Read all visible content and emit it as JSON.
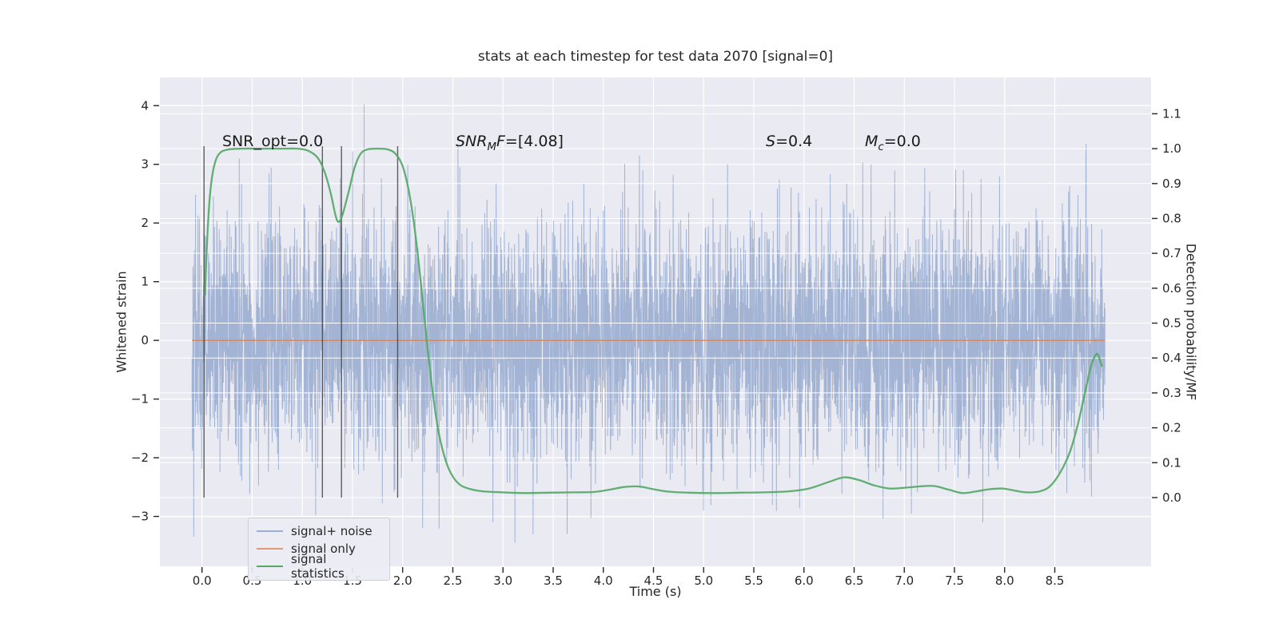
{
  "chart_data": {
    "type": "line",
    "title": "stats at each timestep for test data 2070 [signal=0]",
    "xlabel": "Time (s)",
    "ylabel_left": "Whitened strain",
    "ylabel_right": "Detection probability/MF",
    "plot_background": "#eaeaf2",
    "grid_color": "#ffffff",
    "tick_color": "#262626",
    "xlim": [
      -0.42,
      9.46
    ],
    "ylim_left": [
      -3.85,
      4.48
    ],
    "ylim_right": [
      -0.197,
      1.204
    ],
    "x_tick_values": [
      0,
      0.5,
      1,
      1.5,
      2,
      2.5,
      3,
      3.5,
      4,
      4.5,
      5,
      5.5,
      6,
      6.5,
      7,
      7.5,
      8,
      8.5
    ],
    "x_tick_labels": [
      "0.0",
      "0.5",
      "1.0",
      "1.5",
      "2.0",
      "2.5",
      "3.0",
      "3.5",
      "4.0",
      "4.5",
      "5.0",
      "5.5",
      "6.0",
      "6.5",
      "7.0",
      "7.5",
      "8.0",
      "8.5"
    ],
    "y_left_tick_values": [
      4,
      3,
      2,
      1,
      0,
      -1,
      -2,
      -3
    ],
    "y_left_tick_labels": [
      "4",
      "3",
      "2",
      "1",
      "0",
      "−1",
      "−2",
      "−3"
    ],
    "y_right_tick_values": [
      1.1,
      1.0,
      0.9,
      0.8,
      0.7,
      0.6,
      0.5,
      0.4,
      0.3,
      0.2,
      0.1,
      0.0
    ],
    "y_right_tick_labels": [
      "1.1",
      "1.0",
      "0.9",
      "0.8",
      "0.7",
      "0.6",
      "0.5",
      "0.4",
      "0.3",
      "0.2",
      "0.1",
      "0.0"
    ],
    "series": [
      {
        "name": "signal+ noise",
        "kind": "gaussian_noise",
        "axis": "left",
        "color": "#4c72b0",
        "opacity": 0.45,
        "line_width": 1.0,
        "t_start": -0.1,
        "t_end": 9.0,
        "n": 4600,
        "mean": 0.0,
        "std": 1.02,
        "clamp": 3.35,
        "seed": 42,
        "spikes": [
          [
            0.37,
            3.1
          ],
          [
            1.5,
            3.22
          ],
          [
            1.615,
            4.02
          ],
          [
            2.05,
            3.0
          ],
          [
            2.2,
            -3.2
          ],
          [
            2.57,
            2.95
          ],
          [
            2.9,
            -3.1
          ],
          [
            3.12,
            -3.45
          ],
          [
            3.3,
            -3.3
          ],
          [
            3.64,
            -3.3
          ],
          [
            4.36,
            3.15
          ],
          [
            5.0,
            -2.9
          ],
          [
            6.67,
            3.0
          ],
          [
            7.07,
            -2.95
          ],
          [
            7.95,
            2.8
          ],
          [
            8.62,
            -2.6
          ]
        ]
      },
      {
        "name": "signal only",
        "kind": "constant",
        "axis": "left",
        "color": "#dd8452",
        "opacity": 0.85,
        "line_width": 1.6,
        "value": 0.0,
        "t_start": -0.1,
        "t_end": 9.0
      },
      {
        "name": "signal statistics",
        "kind": "curve",
        "axis": "right",
        "color": "#55a868",
        "opacity": 0.92,
        "line_width": 2.3,
        "points": [
          [
            0.03,
            0.58
          ],
          [
            0.05,
            0.73
          ],
          [
            0.08,
            0.87
          ],
          [
            0.12,
            0.95
          ],
          [
            0.17,
            0.985
          ],
          [
            0.25,
            0.997
          ],
          [
            0.4,
            1.0
          ],
          [
            0.6,
            1.0
          ],
          [
            0.8,
            1.0
          ],
          [
            0.95,
            1.0
          ],
          [
            1.05,
            0.995
          ],
          [
            1.15,
            0.975
          ],
          [
            1.22,
            0.935
          ],
          [
            1.28,
            0.875
          ],
          [
            1.33,
            0.81
          ],
          [
            1.36,
            0.79
          ],
          [
            1.4,
            0.81
          ],
          [
            1.46,
            0.875
          ],
          [
            1.52,
            0.945
          ],
          [
            1.58,
            0.985
          ],
          [
            1.65,
            0.998
          ],
          [
            1.75,
            1.0
          ],
          [
            1.85,
            0.998
          ],
          [
            1.93,
            0.985
          ],
          [
            2.0,
            0.95
          ],
          [
            2.06,
            0.88
          ],
          [
            2.12,
            0.77
          ],
          [
            2.18,
            0.62
          ],
          [
            2.24,
            0.45
          ],
          [
            2.3,
            0.3
          ],
          [
            2.36,
            0.185
          ],
          [
            2.43,
            0.105
          ],
          [
            2.5,
            0.06
          ],
          [
            2.58,
            0.035
          ],
          [
            2.68,
            0.024
          ],
          [
            2.8,
            0.018
          ],
          [
            3.0,
            0.015
          ],
          [
            3.2,
            0.013
          ],
          [
            3.45,
            0.014
          ],
          [
            3.7,
            0.015
          ],
          [
            3.9,
            0.016
          ],
          [
            4.05,
            0.022
          ],
          [
            4.2,
            0.03
          ],
          [
            4.35,
            0.032
          ],
          [
            4.5,
            0.024
          ],
          [
            4.65,
            0.017
          ],
          [
            4.85,
            0.014
          ],
          [
            5.1,
            0.013
          ],
          [
            5.35,
            0.014
          ],
          [
            5.6,
            0.015
          ],
          [
            5.85,
            0.018
          ],
          [
            6.05,
            0.026
          ],
          [
            6.25,
            0.045
          ],
          [
            6.4,
            0.058
          ],
          [
            6.55,
            0.05
          ],
          [
            6.7,
            0.035
          ],
          [
            6.85,
            0.026
          ],
          [
            7.0,
            0.028
          ],
          [
            7.15,
            0.032
          ],
          [
            7.3,
            0.033
          ],
          [
            7.45,
            0.022
          ],
          [
            7.58,
            0.013
          ],
          [
            7.72,
            0.018
          ],
          [
            7.85,
            0.024
          ],
          [
            7.98,
            0.026
          ],
          [
            8.1,
            0.02
          ],
          [
            8.22,
            0.015
          ],
          [
            8.35,
            0.018
          ],
          [
            8.45,
            0.032
          ],
          [
            8.55,
            0.07
          ],
          [
            8.65,
            0.13
          ],
          [
            8.73,
            0.21
          ],
          [
            8.8,
            0.3
          ],
          [
            8.86,
            0.375
          ],
          [
            8.9,
            0.405
          ],
          [
            8.93,
            0.41
          ],
          [
            8.97,
            0.375
          ]
        ]
      }
    ],
    "vlines": {
      "x": [
        0.02,
        1.2,
        1.39,
        1.95
      ],
      "v_min": 0.0,
      "v_max": 1.007,
      "color": "#2f2f2f",
      "opacity": 0.75,
      "line_width": 1.4
    },
    "annotations": [
      {
        "t": 0.2,
        "v": 1.01,
        "segments": [
          {
            "t": "SNR_opt=0.0"
          }
        ]
      },
      {
        "t": 2.53,
        "v": 1.01,
        "segments": [
          {
            "t": "SNR",
            "i": 1
          },
          {
            "t": "M",
            "i": 1,
            "sub": 1
          },
          {
            "t": "F",
            "i": 1
          },
          {
            "t": "=[4.08]"
          }
        ]
      },
      {
        "t": 5.62,
        "v": 1.01,
        "segments": [
          {
            "t": "S",
            "i": 1
          },
          {
            "t": "=0.4"
          }
        ]
      },
      {
        "t": 6.61,
        "v": 1.01,
        "segments": [
          {
            "t": "M",
            "i": 1
          },
          {
            "t": "c",
            "i": 1,
            "sub": 1
          },
          {
            "t": "=0.0"
          }
        ]
      }
    ],
    "legend_position": "lower left"
  },
  "legend": {
    "swatch_opacities": [
      0.5,
      0.8,
      1.0
    ]
  }
}
